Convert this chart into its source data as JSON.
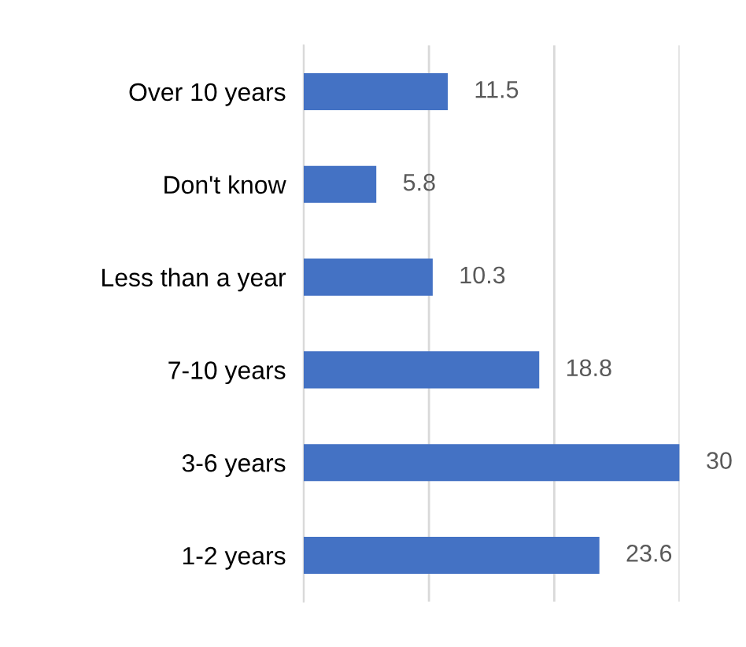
{
  "chart_data": {
    "type": "bar",
    "orientation": "horizontal",
    "categories": [
      "Over 10 years",
      "Don't know",
      "Less than a year",
      "7-10 years",
      "3-6 years",
      "1-2 years"
    ],
    "values": [
      11.5,
      5.8,
      10.3,
      18.8,
      30,
      23.6
    ],
    "color": "#4472c4",
    "xlim": [
      0,
      30
    ],
    "xticks": [
      {
        "value": 0,
        "label": null
      },
      {
        "value": 10,
        "label": null
      },
      {
        "value": 20,
        "label": null
      },
      {
        "value": 30,
        "label": null
      }
    ],
    "grid": "x",
    "tick_labels": "y",
    "data_labels": true
  }
}
